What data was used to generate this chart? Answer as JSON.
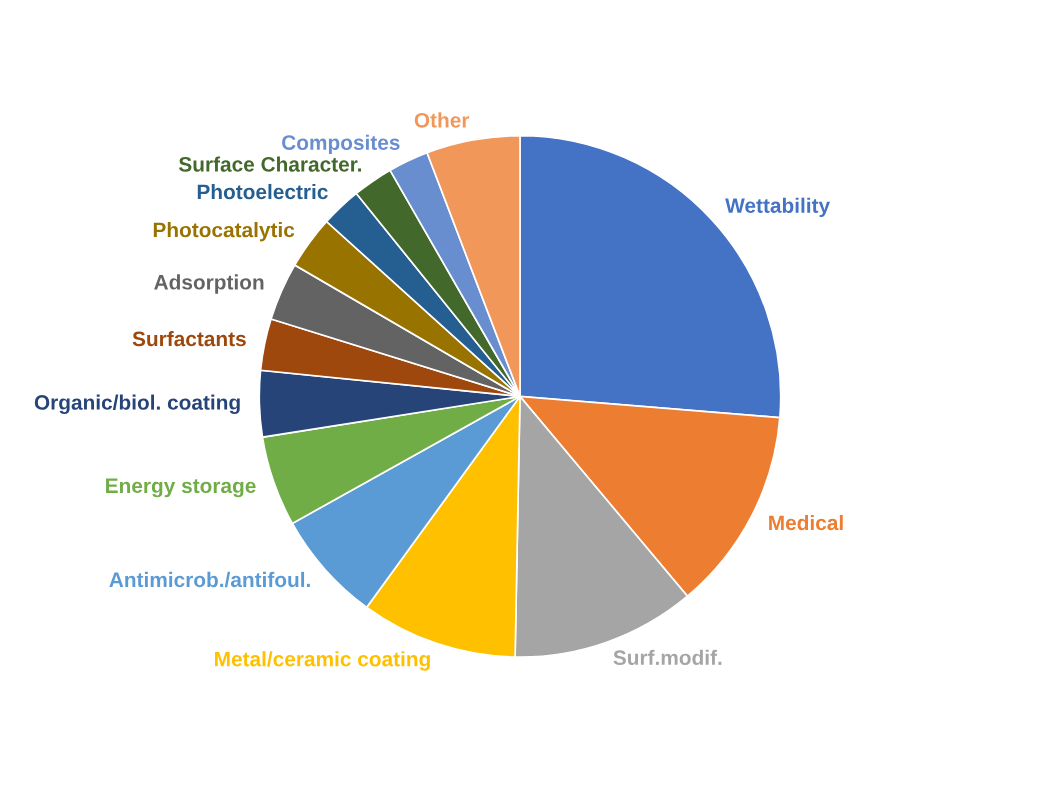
{
  "chart_data": {
    "type": "pie",
    "categories": [
      "Wettability",
      "Medical",
      "Surf.modif.",
      "Metal/ceramic coating",
      "Antimicrob./antifoul.",
      "Energy storage",
      "Organic/biol. coating",
      "Surfactants",
      "Adsorption",
      "Photocatalytic",
      "Photoelectric",
      "Surface Character.",
      "Composites",
      "Other"
    ],
    "values": [
      26.3,
      12.6,
      11.4,
      9.7,
      6.9,
      5.6,
      4.1,
      3.2,
      3.6,
      3.3,
      2.5,
      2.5,
      2.5,
      5.8
    ],
    "colors": [
      "#4472c4",
      "#ed7d31",
      "#a5a5a5",
      "#ffc000",
      "#5b9bd5",
      "#70ad47",
      "#264478",
      "#9e480e",
      "#636363",
      "#997300",
      "#255e91",
      "#43682b",
      "#698ed0",
      "#f1975a"
    ],
    "legend": false
  }
}
